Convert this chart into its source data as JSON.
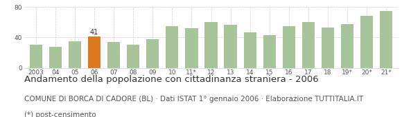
{
  "categories": [
    "2003",
    "04",
    "05",
    "06",
    "07",
    "08",
    "09",
    "10",
    "11*",
    "12",
    "13",
    "14",
    "15",
    "16",
    "17",
    "18",
    "19*",
    "20*",
    "21*"
  ],
  "values": [
    30,
    28,
    35,
    41,
    34,
    30,
    38,
    55,
    52,
    60,
    57,
    47,
    43,
    55,
    60,
    53,
    58,
    68,
    75
  ],
  "highlight_index": 3,
  "highlight_value": 41,
  "bar_color": "#a8c49a",
  "highlight_color": "#e07820",
  "ylim": [
    0,
    80
  ],
  "yticks": [
    0,
    40,
    80
  ],
  "title": "Andamento della popolazione con cittadinanza straniera - 2006",
  "subtitle": "COMUNE DI BORCA DI CADORE (BL) · Dati ISTAT 1° gennaio 2006 · Elaborazione TUTTITALIA.IT",
  "footnote": "(*) post-censimento",
  "title_fontsize": 9.5,
  "subtitle_fontsize": 7.5,
  "footnote_fontsize": 7.5,
  "label_fontsize": 7,
  "tick_fontsize": 6.5,
  "background_color": "#ffffff",
  "grid_color": "#cccccc"
}
